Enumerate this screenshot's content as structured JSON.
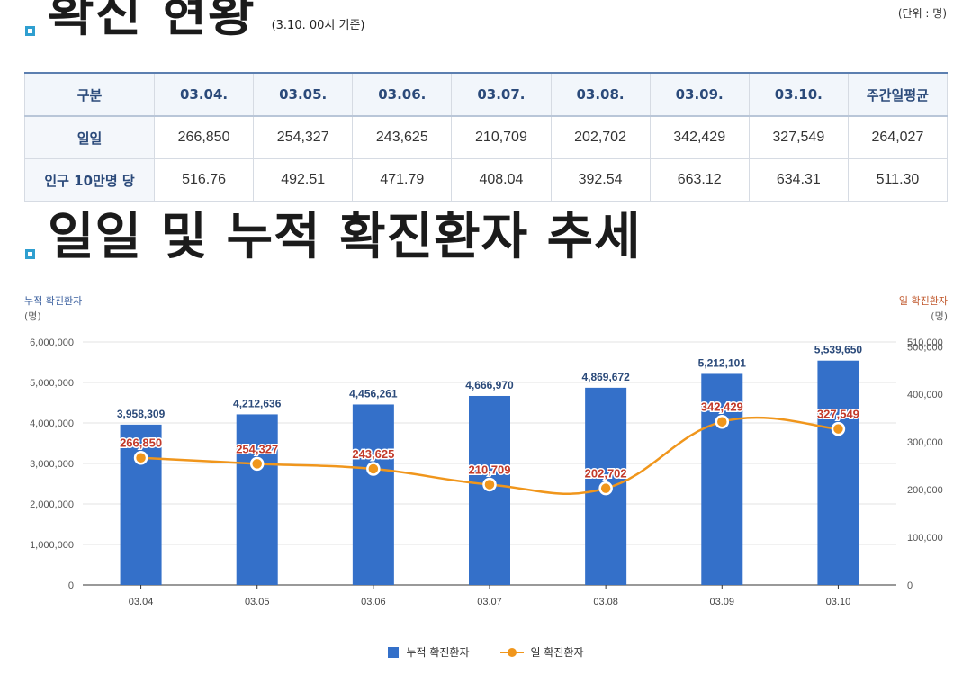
{
  "section1": {
    "title": "확진 현황",
    "subtitle": "(3.10. 00시 기준)",
    "unit": "(단위 : 명)"
  },
  "table": {
    "headers": [
      "구분",
      "03.04.",
      "03.05.",
      "03.06.",
      "03.07.",
      "03.08.",
      "03.09.",
      "03.10.",
      "주간일평균"
    ],
    "rows": [
      {
        "label": "일일",
        "values": [
          "266,850",
          "254,327",
          "243,625",
          "210,709",
          "202,702",
          "342,429",
          "327,549",
          "264,027"
        ]
      },
      {
        "label": "인구 10만명 당",
        "values": [
          "516.76",
          "492.51",
          "471.79",
          "408.04",
          "392.54",
          "663.12",
          "634.31",
          "511.30"
        ]
      }
    ]
  },
  "section2": {
    "title": "일일 및 누적 확진환자 추세"
  },
  "left_axis": {
    "title": "누적 확진환자",
    "unit": "(명)"
  },
  "right_axis": {
    "title": "일 확진환자",
    "unit": "(명)"
  },
  "legend": {
    "bar": "누적 확진환자",
    "line": "일 확진환자"
  },
  "colors": {
    "bar": "#3470c9",
    "line": "#f0961c",
    "bar_label": "#2b4a7a",
    "line_label": "#c23a2a"
  },
  "chart_data": {
    "type": "bar+line",
    "categories": [
      "03.04",
      "03.05",
      "03.06",
      "03.07",
      "03.08",
      "03.09",
      "03.10"
    ],
    "series": [
      {
        "name": "누적 확진환자",
        "type": "bar",
        "axis": "left",
        "values": [
          3958309,
          4212636,
          4456261,
          4666970,
          4869672,
          5212101,
          5539650
        ],
        "labels": [
          "3,958,309",
          "4,212,636",
          "4,456,261",
          "4,666,970",
          "4,869,672",
          "5,212,101",
          "5,539,650"
        ]
      },
      {
        "name": "일 확진환자",
        "type": "line",
        "axis": "right",
        "values": [
          266850,
          254327,
          243625,
          210709,
          202702,
          342429,
          327549
        ],
        "labels": [
          "266,850",
          "254,327",
          "243,625",
          "210,709",
          "202,702",
          "342,429",
          "327,549"
        ]
      }
    ],
    "left_ylim": [
      0,
      6000000
    ],
    "left_ticks": [
      "0",
      "1,000,000",
      "2,000,000",
      "3,000,000",
      "4,000,000",
      "5,000,000",
      "6,000,000"
    ],
    "right_ylim": [
      0,
      510000
    ],
    "right_ticks": [
      "0",
      "100,000",
      "200,000",
      "300,000",
      "400,000",
      "500,000",
      "510,000"
    ],
    "right_tick_values": [
      0,
      100000,
      200000,
      300000,
      400000,
      500000,
      510000
    ],
    "grid": true
  }
}
